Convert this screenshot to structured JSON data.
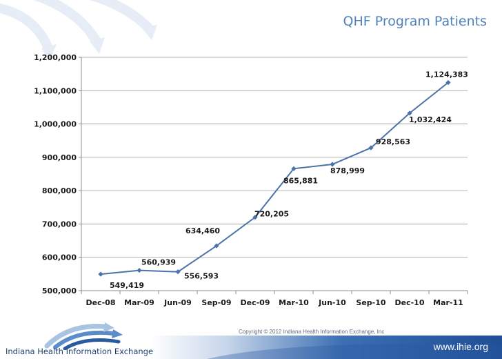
{
  "page": {
    "title": "QHF Program Patients",
    "copyright": "Copyright © 2012 Indiana Health Information Exchange, Inc",
    "website": "www.ihie.org",
    "logo_text": "Indiana Health Information Exchange",
    "accent_color": "#4f81bd",
    "line_color": "#4a73aa"
  },
  "chart_data": {
    "type": "line",
    "title": "QHF Program Patients",
    "xlabel": "",
    "ylabel": "",
    "categories": [
      "Dec-08",
      "Mar-09",
      "Jun-09",
      "Sep-09",
      "Dec-09",
      "Mar-10",
      "Jun-10",
      "Sep-10",
      "Dec-10",
      "Mar-11"
    ],
    "series": [
      {
        "values": [
          549419,
          560939,
          556593,
          634460,
          720205,
          865881,
          878999,
          928563,
          1032424,
          1124383
        ],
        "labels": [
          "549,419",
          "560,939",
          "556,593",
          "634,460",
          "720,205",
          "865,881",
          "878,999",
          "928,563",
          "1,032,424",
          "1,124,383"
        ]
      }
    ],
    "ylim": [
      500000,
      1200000
    ],
    "yticks": [
      500000,
      600000,
      700000,
      800000,
      900000,
      1000000,
      1100000,
      1200000
    ],
    "ytick_labels": [
      "500,000",
      "600,000",
      "700,000",
      "800,000",
      "900,000",
      "1,000,000",
      "1,100,000",
      "1,200,000"
    ],
    "grid": true,
    "legend": "none",
    "marker": "diamond"
  }
}
